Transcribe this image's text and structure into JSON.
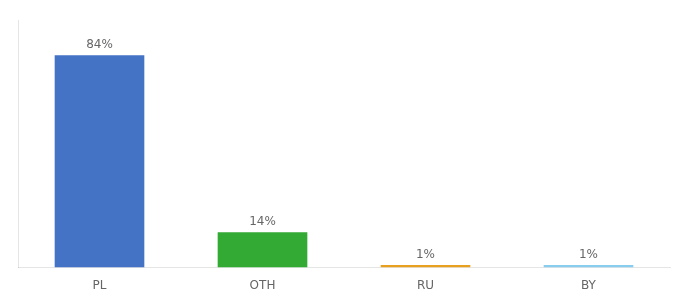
{
  "chart_data": {
    "type": "bar",
    "categories": [
      "PL",
      "OTH",
      "RU",
      "BY"
    ],
    "values": [
      84,
      14,
      1,
      1
    ],
    "value_labels": [
      "84%",
      "14%",
      "1%",
      "1%"
    ],
    "data_labels": true,
    "colors": [
      "#4472c4",
      "#33aa33",
      "#e8a020",
      "#88ccee"
    ],
    "ylim": [
      0,
      98
    ],
    "tick_labels": "x",
    "grid": false
  }
}
